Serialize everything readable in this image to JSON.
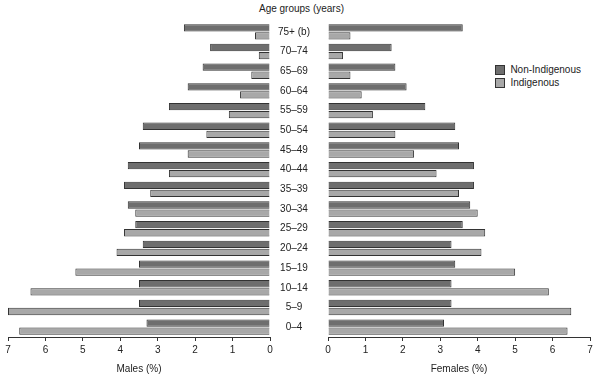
{
  "chart_data": [
    {
      "type": "bar",
      "orientation": "horizontal",
      "title": "Age groups (years)",
      "x_label": "Males (%)",
      "categories": [
        "75+ (b)",
        "70–74",
        "65–69",
        "60–64",
        "55–59",
        "50–54",
        "45–49",
        "40–44",
        "35–39",
        "30–34",
        "25–29",
        "20–24",
        "15–19",
        "10–14",
        "5–9",
        "0–4"
      ],
      "series": [
        {
          "name": "Non-Indigenous",
          "color": "#6e6e6e",
          "values": [
            2.3,
            1.6,
            1.8,
            2.2,
            2.7,
            3.4,
            3.5,
            3.8,
            3.9,
            3.8,
            3.6,
            3.4,
            3.5,
            3.5,
            3.5,
            3.3
          ]
        },
        {
          "name": "Indigenous",
          "color": "#a8a8a8",
          "values": [
            0.4,
            0.3,
            0.5,
            0.8,
            1.1,
            1.7,
            2.2,
            2.7,
            3.2,
            3.6,
            3.9,
            4.1,
            5.2,
            6.4,
            7.0,
            6.7
          ]
        }
      ],
      "xlim": [
        7,
        0
      ],
      "xticks": [
        7,
        6,
        5,
        4,
        3,
        2,
        1,
        0
      ],
      "grid": false,
      "legend": false
    },
    {
      "type": "bar",
      "orientation": "horizontal",
      "x_label": "Females (%)",
      "categories": [
        "75+ (b)",
        "70–74",
        "65–69",
        "60–64",
        "55–59",
        "50–54",
        "45–49",
        "40–44",
        "35–39",
        "30–34",
        "25–29",
        "20–24",
        "15–19",
        "10–14",
        "5–9",
        "0–4"
      ],
      "series": [
        {
          "name": "Non-Indigenous",
          "color": "#6e6e6e",
          "values": [
            3.6,
            1.7,
            1.8,
            2.1,
            2.6,
            3.4,
            3.5,
            3.9,
            3.9,
            3.8,
            3.6,
            3.3,
            3.4,
            3.3,
            3.3,
            3.1
          ]
        },
        {
          "name": "Indigenous",
          "color": "#a8a8a8",
          "values": [
            0.6,
            0.4,
            0.6,
            0.9,
            1.2,
            1.8,
            2.3,
            2.9,
            3.5,
            4.0,
            4.2,
            4.1,
            5.0,
            5.9,
            6.5,
            6.4
          ]
        }
      ],
      "xlim": [
        0,
        7
      ],
      "xticks": [
        0,
        1,
        2,
        3,
        4,
        5,
        6,
        7
      ],
      "grid": false,
      "legend": "top-right",
      "tick_labels": "x"
    }
  ]
}
